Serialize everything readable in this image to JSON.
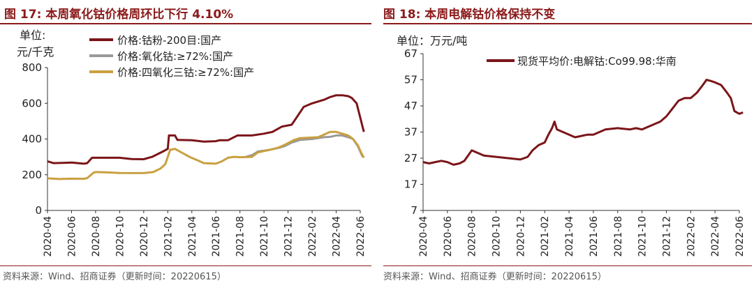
{
  "left_panel": {
    "title": "图 17:  本周氧化钴价格周环比下行 4.10%",
    "source": "资料来源：Wind、招商证券（更新时间：20220615）"
  },
  "right_panel": {
    "title": "图 18:  本周电解钴价格保持不变",
    "source": "资料来源：Wind、招商证券（更新时间：20220615）"
  },
  "colors": {
    "accent": "#8b1a1a",
    "series_dark": "#7b1518",
    "series_gray": "#999999",
    "series_gold": "#c9a040"
  },
  "chart_data": [
    {
      "type": "line",
      "unit_line1": "单位:",
      "unit_line2": "元/千克",
      "ylim": [
        0,
        800
      ],
      "yticks": [
        "800",
        "600",
        "400",
        "200",
        "0"
      ],
      "ytick_values": [
        800,
        600,
        400,
        200,
        0
      ],
      "xticks": [
        "2020-04",
        "2020-06",
        "2020-08",
        "2020-10",
        "2020-12",
        "2021-02",
        "2021-04",
        "2021-06",
        "2021-08",
        "2021-10",
        "2021-12",
        "2022-02",
        "2022-04",
        "2022-06"
      ],
      "xtick_months": [
        0,
        2,
        4,
        6,
        8,
        10,
        12,
        14,
        16,
        18,
        20,
        22,
        24,
        26
      ],
      "x_range_months": [
        0,
        26
      ],
      "series": [
        {
          "name": "价格:钴粉-200目:国产",
          "color": "#7b1518",
          "points": [
            [
              0,
              275
            ],
            [
              0.5,
              265
            ],
            [
              1.5,
              267
            ],
            [
              2,
              268
            ],
            [
              3,
              262
            ],
            [
              3.3,
              265
            ],
            [
              3.7,
              295
            ],
            [
              5,
              295
            ],
            [
              6,
              295
            ],
            [
              7,
              288
            ],
            [
              8,
              287
            ],
            [
              8.7,
              300
            ],
            [
              9.6,
              330
            ],
            [
              10,
              345
            ],
            [
              10.1,
              420
            ],
            [
              10.6,
              420
            ],
            [
              10.8,
              395
            ],
            [
              12,
              393
            ],
            [
              13,
              385
            ],
            [
              14,
              388
            ],
            [
              14.3,
              393
            ],
            [
              15,
              393
            ],
            [
              15.5,
              410
            ],
            [
              15.8,
              420
            ],
            [
              17,
              420
            ],
            [
              18,
              430
            ],
            [
              18.7,
              440
            ],
            [
              19.5,
              470
            ],
            [
              20.3,
              480
            ],
            [
              20.7,
              520
            ],
            [
              21.3,
              580
            ],
            [
              22,
              600
            ],
            [
              22.5,
              610
            ],
            [
              23,
              620
            ],
            [
              23.5,
              635
            ],
            [
              24,
              645
            ],
            [
              24.5,
              645
            ],
            [
              25,
              640
            ],
            [
              25.3,
              630
            ],
            [
              25.7,
              600
            ],
            [
              26,
              520
            ],
            [
              26.3,
              440
            ]
          ]
        },
        {
          "name": "价格:氧化钴:≥72%:国产",
          "color": "#999999",
          "points": [
            [
              16.5,
              300
            ],
            [
              17,
              310
            ],
            [
              17.5,
              330
            ],
            [
              18.5,
              340
            ],
            [
              19.2,
              350
            ],
            [
              19.7,
              360
            ],
            [
              20.3,
              380
            ],
            [
              21,
              395
            ],
            [
              22,
              400
            ],
            [
              22.5,
              405
            ],
            [
              23,
              410
            ],
            [
              23.5,
              412
            ],
            [
              24,
              420
            ],
            [
              24.5,
              420
            ],
            [
              25,
              410
            ],
            [
              25.4,
              400
            ],
            [
              25.8,
              360
            ],
            [
              26.2,
              300
            ]
          ]
        },
        {
          "name": "价格:四氧化三钴:≥72%:国产",
          "color": "#c9a040",
          "points": [
            [
              0,
              180
            ],
            [
              1,
              176
            ],
            [
              2,
              178
            ],
            [
              3,
              177
            ],
            [
              3.3,
              181
            ],
            [
              3.8,
              210
            ],
            [
              4,
              215
            ],
            [
              5,
              213
            ],
            [
              6,
              210
            ],
            [
              8,
              209
            ],
            [
              8.8,
              215
            ],
            [
              9.4,
              235
            ],
            [
              9.8,
              260
            ],
            [
              10,
              300
            ],
            [
              10.2,
              340
            ],
            [
              10.6,
              345
            ],
            [
              11,
              330
            ],
            [
              11.8,
              300
            ],
            [
              12.5,
              280
            ],
            [
              13,
              265
            ],
            [
              14,
              262
            ],
            [
              14.5,
              275
            ],
            [
              15,
              295
            ],
            [
              15.5,
              300
            ],
            [
              16,
              298
            ],
            [
              17,
              300
            ],
            [
              17.5,
              325
            ],
            [
              18.5,
              340
            ],
            [
              19.2,
              352
            ],
            [
              19.8,
              370
            ],
            [
              20.5,
              395
            ],
            [
              21,
              405
            ],
            [
              22,
              408
            ],
            [
              22.5,
              410
            ],
            [
              23,
              425
            ],
            [
              23.5,
              440
            ],
            [
              24,
              440
            ],
            [
              24.5,
              430
            ],
            [
              25,
              420
            ],
            [
              25.4,
              400
            ],
            [
              25.8,
              365
            ],
            [
              26.1,
              320
            ],
            [
              26.3,
              295
            ]
          ]
        }
      ]
    },
    {
      "type": "line",
      "unit_label": "单位：万元/吨",
      "ylim": [
        7,
        67
      ],
      "yticks": [
        "67",
        "57",
        "47",
        "37",
        "27",
        "17",
        "7"
      ],
      "ytick_values": [
        67,
        57,
        47,
        37,
        27,
        17,
        7
      ],
      "xticks": [
        "2020-04",
        "2020-06",
        "2020-08",
        "2020-10",
        "2020-12",
        "2021-02",
        "2021-04",
        "2021-06",
        "2021-08",
        "2021-10",
        "2021-12",
        "2022-02",
        "2022-04",
        "2022-06"
      ],
      "xtick_months": [
        0,
        2,
        4,
        6,
        8,
        10,
        12,
        14,
        16,
        18,
        20,
        22,
        24,
        26
      ],
      "x_range_months": [
        0,
        26
      ],
      "series": [
        {
          "name": "现货平均价:电解钴:Co99.98:华南",
          "color": "#7b1518",
          "points": [
            [
              0,
              25.5
            ],
            [
              0.5,
              25
            ],
            [
              1,
              25.5
            ],
            [
              1.5,
              26
            ],
            [
              2,
              25.5
            ],
            [
              2.5,
              24.5
            ],
            [
              3,
              25
            ],
            [
              3.4,
              26
            ],
            [
              3.7,
              28
            ],
            [
              4,
              30
            ],
            [
              4.5,
              29
            ],
            [
              5,
              28
            ],
            [
              6,
              27.5
            ],
            [
              7,
              27
            ],
            [
              8,
              26.5
            ],
            [
              8.6,
              27.5
            ],
            [
              9,
              30
            ],
            [
              9.5,
              32
            ],
            [
              10,
              33
            ],
            [
              10.3,
              36
            ],
            [
              10.6,
              38.5
            ],
            [
              10.8,
              41
            ],
            [
              11,
              38
            ],
            [
              11.5,
              37
            ],
            [
              12,
              36
            ],
            [
              12.5,
              35
            ],
            [
              13,
              35.5
            ],
            [
              13.5,
              36
            ],
            [
              14,
              36
            ],
            [
              14.5,
              37
            ],
            [
              15,
              38
            ],
            [
              16,
              38.5
            ],
            [
              17,
              38
            ],
            [
              17.5,
              38.5
            ],
            [
              18,
              38
            ],
            [
              18.5,
              39
            ],
            [
              19,
              40
            ],
            [
              19.5,
              41
            ],
            [
              20,
              43
            ],
            [
              20.5,
              46
            ],
            [
              21,
              49
            ],
            [
              21.5,
              50
            ],
            [
              22,
              50
            ],
            [
              22.5,
              52
            ],
            [
              23,
              55
            ],
            [
              23.3,
              57
            ],
            [
              23.7,
              56.5
            ],
            [
              24,
              56
            ],
            [
              24.5,
              55
            ],
            [
              25,
              52
            ],
            [
              25.3,
              50
            ],
            [
              25.6,
              45
            ],
            [
              26,
              44
            ],
            [
              26.3,
              44.5
            ]
          ]
        }
      ]
    }
  ]
}
